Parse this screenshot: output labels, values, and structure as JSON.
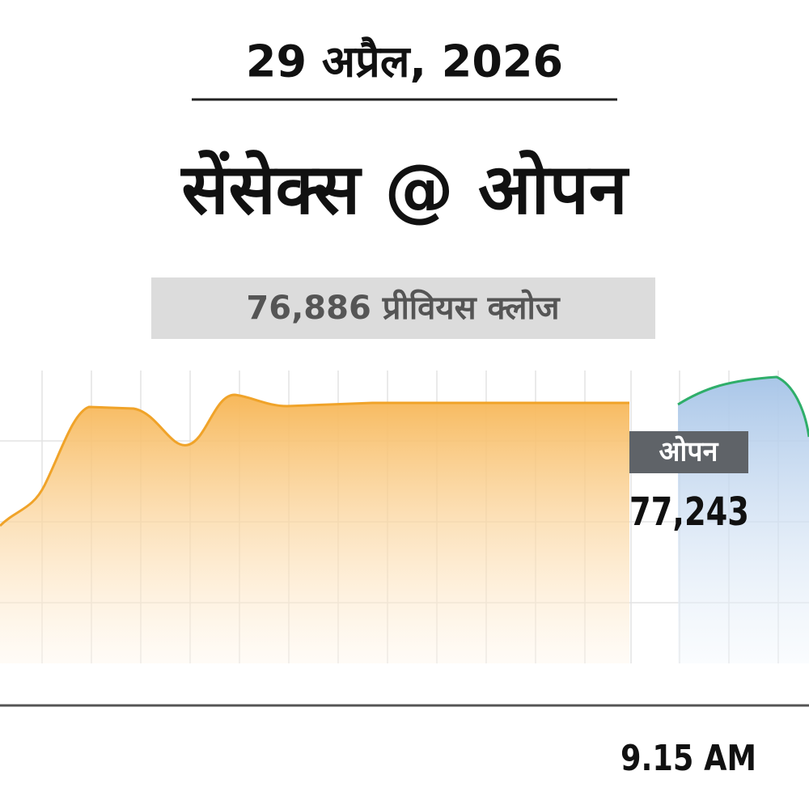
{
  "header": {
    "date": "29 अप्रैल, 2026",
    "title": "सेंसेक्स @ ओपन"
  },
  "previous_close": "76,886 प्रीवियस क्लोज",
  "open_badge": "ओपन",
  "open_value": "77,243",
  "time_label": "9.15 AM"
}
